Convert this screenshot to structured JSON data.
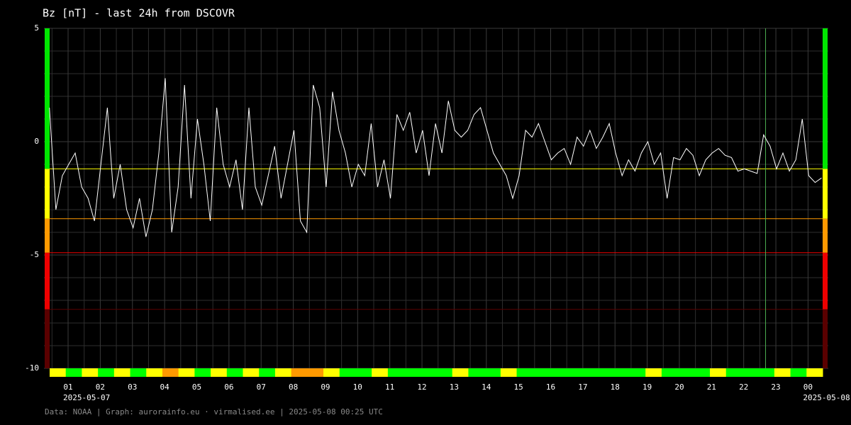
{
  "chart_data": {
    "type": "line",
    "title": "Bz [nT] - last 24h from DSCOVR",
    "footer": "Data: NOAA | Graph: aurorainfo.eu · virmalised.ee | 2025-05-08 00:25 UTC",
    "color": "#ffffff",
    "x": [
      0.42,
      0.62,
      0.82,
      1.02,
      1.22,
      1.42,
      1.62,
      1.82,
      2.02,
      2.22,
      2.42,
      2.62,
      2.82,
      3.02,
      3.22,
      3.42,
      3.62,
      3.82,
      4.02,
      4.22,
      4.42,
      4.62,
      4.82,
      5.02,
      5.22,
      5.42,
      5.62,
      5.82,
      6.02,
      6.22,
      6.42,
      6.62,
      6.82,
      7.02,
      7.22,
      7.42,
      7.62,
      7.82,
      8.02,
      8.22,
      8.42,
      8.62,
      8.82,
      9.02,
      9.22,
      9.42,
      9.62,
      9.82,
      10.02,
      10.22,
      10.42,
      10.62,
      10.82,
      11.02,
      11.22,
      11.42,
      11.62,
      11.82,
      12.02,
      12.22,
      12.42,
      12.62,
      12.82,
      13.02,
      13.22,
      13.42,
      13.62,
      13.82,
      14.02,
      14.22,
      14.42,
      14.62,
      14.82,
      15.02,
      15.22,
      15.42,
      15.62,
      15.82,
      16.02,
      16.22,
      16.42,
      16.62,
      16.82,
      17.02,
      17.22,
      17.42,
      17.62,
      17.82,
      18.02,
      18.22,
      18.42,
      18.62,
      18.82,
      19.02,
      19.22,
      19.42,
      19.62,
      19.82,
      20.02,
      20.22,
      20.42,
      20.62,
      20.82,
      21.02,
      21.22,
      21.42,
      21.62,
      21.82,
      22.02,
      22.22,
      22.42,
      22.62,
      22.82,
      23.02,
      23.22,
      23.42,
      23.62,
      23.82,
      24.02,
      24.22,
      24.42
    ],
    "values": [
      1.5,
      -3.0,
      -1.5,
      -1.0,
      -0.5,
      -2.0,
      -2.5,
      -3.5,
      -1.0,
      1.5,
      -2.5,
      -1.0,
      -3.0,
      -3.8,
      -2.5,
      -4.2,
      -3.0,
      -0.5,
      2.8,
      -4.0,
      -2.0,
      2.5,
      -2.5,
      1.0,
      -1.0,
      -3.5,
      1.5,
      -1.0,
      -2.0,
      -0.8,
      -3.0,
      1.5,
      -2.0,
      -2.8,
      -1.5,
      -0.2,
      -2.5,
      -1.0,
      0.5,
      -3.5,
      -4.0,
      2.5,
      1.5,
      -2.0,
      2.2,
      0.5,
      -0.5,
      -2.0,
      -1.0,
      -1.5,
      0.8,
      -2.0,
      -0.8,
      -2.5,
      1.2,
      0.5,
      1.3,
      -0.5,
      0.5,
      -1.5,
      0.8,
      -0.5,
      1.8,
      0.5,
      0.2,
      0.5,
      1.2,
      1.5,
      0.5,
      -0.5,
      -1.0,
      -1.5,
      -2.5,
      -1.5,
      0.5,
      0.2,
      0.8,
      0.0,
      -0.8,
      -0.5,
      -0.3,
      -1.0,
      0.2,
      -0.2,
      0.5,
      -0.3,
      0.2,
      0.8,
      -0.5,
      -1.5,
      -0.8,
      -1.3,
      -0.5,
      0.0,
      -1.0,
      -0.5,
      -2.5,
      -0.7,
      -0.8,
      -0.3,
      -0.6,
      -1.5,
      -0.8,
      -0.5,
      -0.3,
      -0.6,
      -0.7,
      -1.3,
      -1.2,
      -1.3,
      -1.4,
      0.3,
      -0.2,
      -1.2,
      -0.5,
      -1.3,
      -0.8,
      1.0,
      -1.5,
      -1.8,
      -1.6
    ],
    "xlim": [
      0.25,
      24.63
    ],
    "xticks": [
      {
        "value": 1,
        "label": "01"
      },
      {
        "value": 2,
        "label": "02"
      },
      {
        "value": 3,
        "label": "03"
      },
      {
        "value": 4,
        "label": "04"
      },
      {
        "value": 5,
        "label": "05"
      },
      {
        "value": 6,
        "label": "06"
      },
      {
        "value": 7,
        "label": "07"
      },
      {
        "value": 8,
        "label": "08"
      },
      {
        "value": 9,
        "label": "09"
      },
      {
        "value": 10,
        "label": "10"
      },
      {
        "value": 11,
        "label": "11"
      },
      {
        "value": 12,
        "label": "12"
      },
      {
        "value": 13,
        "label": "13"
      },
      {
        "value": 14,
        "label": "14"
      },
      {
        "value": 15,
        "label": "15"
      },
      {
        "value": 16,
        "label": "16"
      },
      {
        "value": 17,
        "label": "17"
      },
      {
        "value": 18,
        "label": "18"
      },
      {
        "value": 19,
        "label": "19"
      },
      {
        "value": 20,
        "label": "20"
      },
      {
        "value": 21,
        "label": "21"
      },
      {
        "value": 22,
        "label": "22"
      },
      {
        "value": 23,
        "label": "23"
      },
      {
        "value": 24,
        "label": "00"
      }
    ],
    "xminorticks": [
      0.5,
      1.5,
      2.5,
      3.5,
      4.5,
      5.5,
      6.5,
      7.5,
      8.5,
      9.5,
      10.5,
      11.5,
      12.5,
      13.5,
      14.5,
      15.5,
      16.5,
      17.5,
      18.5,
      19.5,
      20.5,
      21.5,
      22.5,
      23.5,
      24.5
    ],
    "x_date_labels": [
      {
        "value": 1,
        "label": "2025-05-07"
      },
      {
        "value": 24,
        "label": "2025-05-08"
      }
    ],
    "ylim": [
      -10,
      5
    ],
    "yticks": [
      -10,
      -5,
      0,
      5
    ],
    "yminorticks": [
      -9,
      -8,
      -7,
      -6,
      -4,
      -3,
      -2,
      -1,
      1,
      2,
      3,
      4
    ],
    "grid": true,
    "top_band_color": "#00e600",
    "thresholds": [
      {
        "value": -1.2,
        "color": "#ffff00"
      },
      {
        "value": -3.4,
        "color": "#ff9900"
      },
      {
        "value": -4.9,
        "color": "#ee0000"
      },
      {
        "value": -7.4,
        "color": "#5a0000"
      }
    ],
    "vline": {
      "value": 22.68,
      "color": "#4caf50"
    },
    "status_strip": [
      "#ffff00",
      "#00ff00",
      "#ffff00",
      "#00ff00",
      "#ffff00",
      "#00ff00",
      "#ffff00",
      "#ff9900",
      "#ffff00",
      "#00ff00",
      "#ffff00",
      "#00ff00",
      "#ffff00",
      "#00ff00",
      "#ffff00",
      "#ff9900",
      "#ff9900",
      "#ffff00",
      "#00ff00",
      "#00ff00",
      "#ffff00",
      "#00ff00",
      "#00ff00",
      "#00ff00",
      "#00ff00",
      "#ffff00",
      "#00ff00",
      "#00ff00",
      "#ffff00",
      "#00ff00",
      "#00ff00",
      "#00ff00",
      "#00ff00",
      "#00ff00",
      "#00ff00",
      "#00ff00",
      "#00ff00",
      "#ffff00",
      "#00ff00",
      "#00ff00",
      "#00ff00",
      "#ffff00",
      "#00ff00",
      "#00ff00",
      "#00ff00",
      "#ffff00",
      "#00ff00",
      "#ffff00"
    ]
  }
}
